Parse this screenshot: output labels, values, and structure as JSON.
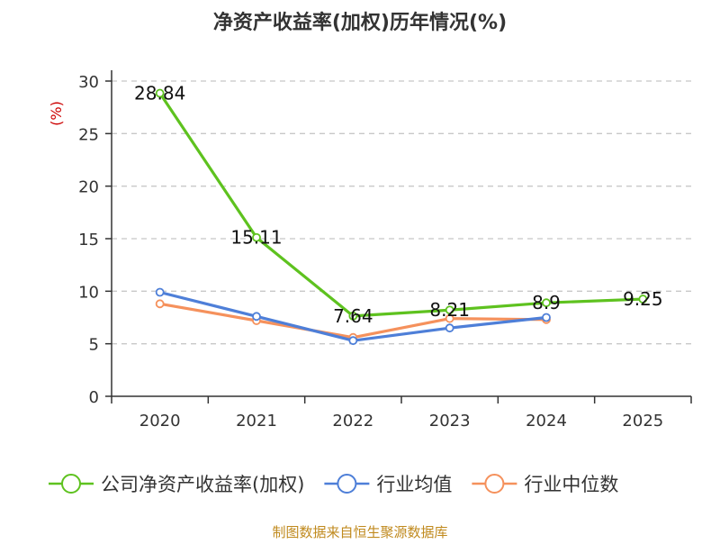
{
  "chart_data": {
    "type": "line",
    "title": "净资产收益率(加权)历年情况(%)",
    "ylabel": "(%)",
    "xlabel": "",
    "categories": [
      "2020",
      "2021",
      "2022",
      "2023",
      "2024",
      "2025"
    ],
    "ylim": [
      0,
      30
    ],
    "yticks": [
      0,
      5,
      10,
      15,
      20,
      25,
      30
    ],
    "grid": true,
    "legend_position": "bottom",
    "series": [
      {
        "name": "公司净资产收益率(加权)",
        "color": "#5ec21f",
        "values": [
          28.84,
          15.11,
          7.64,
          8.21,
          8.9,
          9.25
        ],
        "labels": [
          "28.84",
          "15.11",
          "7.64",
          "8.21",
          "8.9",
          "9.25"
        ],
        "show_labels": true
      },
      {
        "name": "行业均值",
        "color": "#4e7fd8",
        "values": [
          9.9,
          7.6,
          5.3,
          6.5,
          7.5,
          null
        ],
        "show_labels": false
      },
      {
        "name": "行业中位数",
        "color": "#f5915c",
        "values": [
          8.8,
          7.2,
          5.6,
          7.4,
          7.3,
          null
        ],
        "show_labels": false
      }
    ],
    "source": "制图数据来自恒生聚源数据库"
  }
}
